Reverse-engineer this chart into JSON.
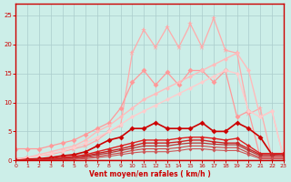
{
  "bg_color": "#cceee8",
  "grid_color": "#aacccc",
  "xlabel": "Vent moyen/en rafales ( km/h )",
  "xlim": [
    0,
    23
  ],
  "ylim": [
    0,
    27
  ],
  "yticks": [
    0,
    5,
    10,
    15,
    20,
    25
  ],
  "xticks": [
    0,
    1,
    2,
    3,
    4,
    5,
    6,
    7,
    8,
    9,
    10,
    11,
    12,
    13,
    14,
    15,
    16,
    17,
    18,
    19,
    20,
    21,
    22,
    23
  ],
  "lines": [
    {
      "x": [
        0,
        1,
        2,
        3,
        4,
        5,
        6,
        7,
        8,
        9,
        10,
        11,
        12,
        13,
        14,
        15,
        16,
        17,
        18,
        19,
        20,
        21,
        22,
        23
      ],
      "y": [
        0.3,
        0.5,
        0.8,
        1.0,
        1.5,
        2.0,
        2.5,
        3.5,
        5.0,
        6.0,
        18.5,
        22.5,
        19.5,
        23.0,
        19.5,
        23.5,
        19.5,
        24.5,
        19.0,
        18.5,
        8.0,
        9.0,
        0.5,
        0.5
      ],
      "color": "#ffaaaa",
      "lw": 0.9,
      "marker": "*",
      "ms": 4.5
    },
    {
      "x": [
        0,
        1,
        2,
        3,
        4,
        5,
        6,
        7,
        8,
        9,
        10,
        11,
        12,
        13,
        14,
        15,
        16,
        17,
        18,
        19,
        20,
        21,
        22,
        23
      ],
      "y": [
        2.0,
        2.0,
        2.0,
        2.5,
        3.0,
        3.5,
        4.5,
        5.5,
        6.5,
        9.0,
        13.5,
        15.5,
        13.0,
        15.2,
        13.0,
        15.5,
        15.5,
        13.5,
        15.5,
        7.5,
        8.5,
        0.5,
        0.5,
        0.5
      ],
      "color": "#ff9999",
      "lw": 0.9,
      "marker": "D",
      "ms": 3.0
    },
    {
      "x": [
        0,
        1,
        2,
        3,
        4,
        5,
        6,
        7,
        8,
        9,
        10,
        11,
        12,
        13,
        14,
        15,
        16,
        17,
        18,
        19,
        20,
        21,
        22,
        23
      ],
      "y": [
        0.0,
        0.5,
        1.0,
        1.5,
        2.0,
        2.5,
        3.5,
        5.0,
        6.0,
        7.5,
        9.0,
        10.5,
        11.5,
        12.5,
        13.5,
        14.5,
        15.5,
        16.5,
        17.5,
        18.5,
        15.5,
        7.5,
        8.5,
        0.5
      ],
      "color": "#ffbbbb",
      "lw": 1.0,
      "marker": "D",
      "ms": 2.5
    },
    {
      "x": [
        0,
        1,
        2,
        3,
        4,
        5,
        6,
        7,
        8,
        9,
        10,
        11,
        12,
        13,
        14,
        15,
        16,
        17,
        18,
        19,
        20,
        21,
        22,
        23
      ],
      "y": [
        0.0,
        0.4,
        0.8,
        1.2,
        1.6,
        2.2,
        3.0,
        4.0,
        5.0,
        6.2,
        7.5,
        8.5,
        9.5,
        10.5,
        11.5,
        12.5,
        13.5,
        14.5,
        15.5,
        15.0,
        8.5,
        7.5,
        8.5,
        0.5
      ],
      "color": "#ffcccc",
      "lw": 1.0,
      "marker": "D",
      "ms": 2.5
    },
    {
      "x": [
        0,
        1,
        2,
        3,
        4,
        5,
        6,
        7,
        8,
        9,
        10,
        11,
        12,
        13,
        14,
        15,
        16,
        17,
        18,
        19,
        20,
        21,
        22,
        23
      ],
      "y": [
        0.0,
        0.2,
        0.3,
        0.5,
        0.8,
        1.0,
        1.5,
        2.5,
        3.5,
        4.0,
        5.5,
        5.5,
        6.5,
        5.5,
        5.5,
        5.5,
        6.5,
        5.0,
        5.0,
        6.5,
        5.5,
        4.0,
        1.0,
        1.2
      ],
      "color": "#cc0000",
      "lw": 1.2,
      "marker": "D",
      "ms": 3.0
    },
    {
      "x": [
        0,
        1,
        2,
        3,
        4,
        5,
        6,
        7,
        8,
        9,
        10,
        11,
        12,
        13,
        14,
        15,
        16,
        17,
        18,
        19,
        20,
        21,
        22,
        23
      ],
      "y": [
        0.0,
        0.1,
        0.2,
        0.3,
        0.5,
        0.7,
        1.0,
        1.5,
        2.0,
        2.5,
        3.0,
        3.5,
        3.5,
        3.5,
        3.8,
        4.0,
        4.0,
        3.8,
        3.5,
        3.8,
        2.5,
        1.2,
        1.2,
        1.2
      ],
      "color": "#dd2222",
      "lw": 1.0,
      "marker": "D",
      "ms": 2.5
    },
    {
      "x": [
        0,
        1,
        2,
        3,
        4,
        5,
        6,
        7,
        8,
        9,
        10,
        11,
        12,
        13,
        14,
        15,
        16,
        17,
        18,
        19,
        20,
        21,
        22,
        23
      ],
      "y": [
        0.0,
        0.1,
        0.1,
        0.2,
        0.4,
        0.5,
        0.8,
        1.2,
        1.6,
        2.0,
        2.5,
        3.0,
        3.0,
        3.0,
        3.2,
        3.5,
        3.5,
        3.2,
        3.0,
        3.0,
        2.0,
        1.0,
        1.0,
        1.0
      ],
      "color": "#cc2222",
      "lw": 1.0,
      "marker": "D",
      "ms": 2.5
    },
    {
      "x": [
        0,
        1,
        2,
        3,
        4,
        5,
        6,
        7,
        8,
        9,
        10,
        11,
        12,
        13,
        14,
        15,
        16,
        17,
        18,
        19,
        20,
        21,
        22,
        23
      ],
      "y": [
        0.0,
        0.0,
        0.1,
        0.2,
        0.3,
        0.4,
        0.6,
        1.0,
        1.3,
        1.7,
        2.1,
        2.5,
        2.5,
        2.5,
        2.8,
        3.0,
        3.0,
        2.8,
        2.7,
        2.7,
        1.7,
        0.8,
        0.8,
        0.8
      ],
      "color": "#bb3333",
      "lw": 0.9,
      "marker": "D",
      "ms": 2.0
    },
    {
      "x": [
        0,
        1,
        2,
        3,
        4,
        5,
        6,
        7,
        8,
        9,
        10,
        11,
        12,
        13,
        14,
        15,
        16,
        17,
        18,
        19,
        20,
        21,
        22,
        23
      ],
      "y": [
        0.0,
        0.0,
        0.0,
        0.1,
        0.2,
        0.3,
        0.5,
        0.7,
        1.0,
        1.3,
        1.7,
        2.0,
        2.0,
        2.0,
        2.2,
        2.5,
        2.5,
        2.3,
        2.2,
        2.2,
        1.3,
        0.5,
        0.5,
        0.5
      ],
      "color": "#cc4444",
      "lw": 0.8,
      "marker": "D",
      "ms": 2.0
    },
    {
      "x": [
        0,
        1,
        2,
        3,
        4,
        5,
        6,
        7,
        8,
        9,
        10,
        11,
        12,
        13,
        14,
        15,
        16,
        17,
        18,
        19,
        20,
        21,
        22,
        23
      ],
      "y": [
        0.0,
        0.0,
        0.0,
        0.0,
        0.1,
        0.2,
        0.3,
        0.5,
        0.7,
        1.0,
        1.3,
        1.5,
        1.5,
        1.5,
        1.7,
        2.0,
        2.0,
        1.8,
        1.7,
        1.7,
        1.0,
        0.3,
        0.3,
        0.3
      ],
      "color": "#cc5555",
      "lw": 0.8,
      "marker": "D",
      "ms": 2.0
    }
  ],
  "axis_color": "#cc0000",
  "tick_color": "#cc0000",
  "label_color": "#cc0000"
}
